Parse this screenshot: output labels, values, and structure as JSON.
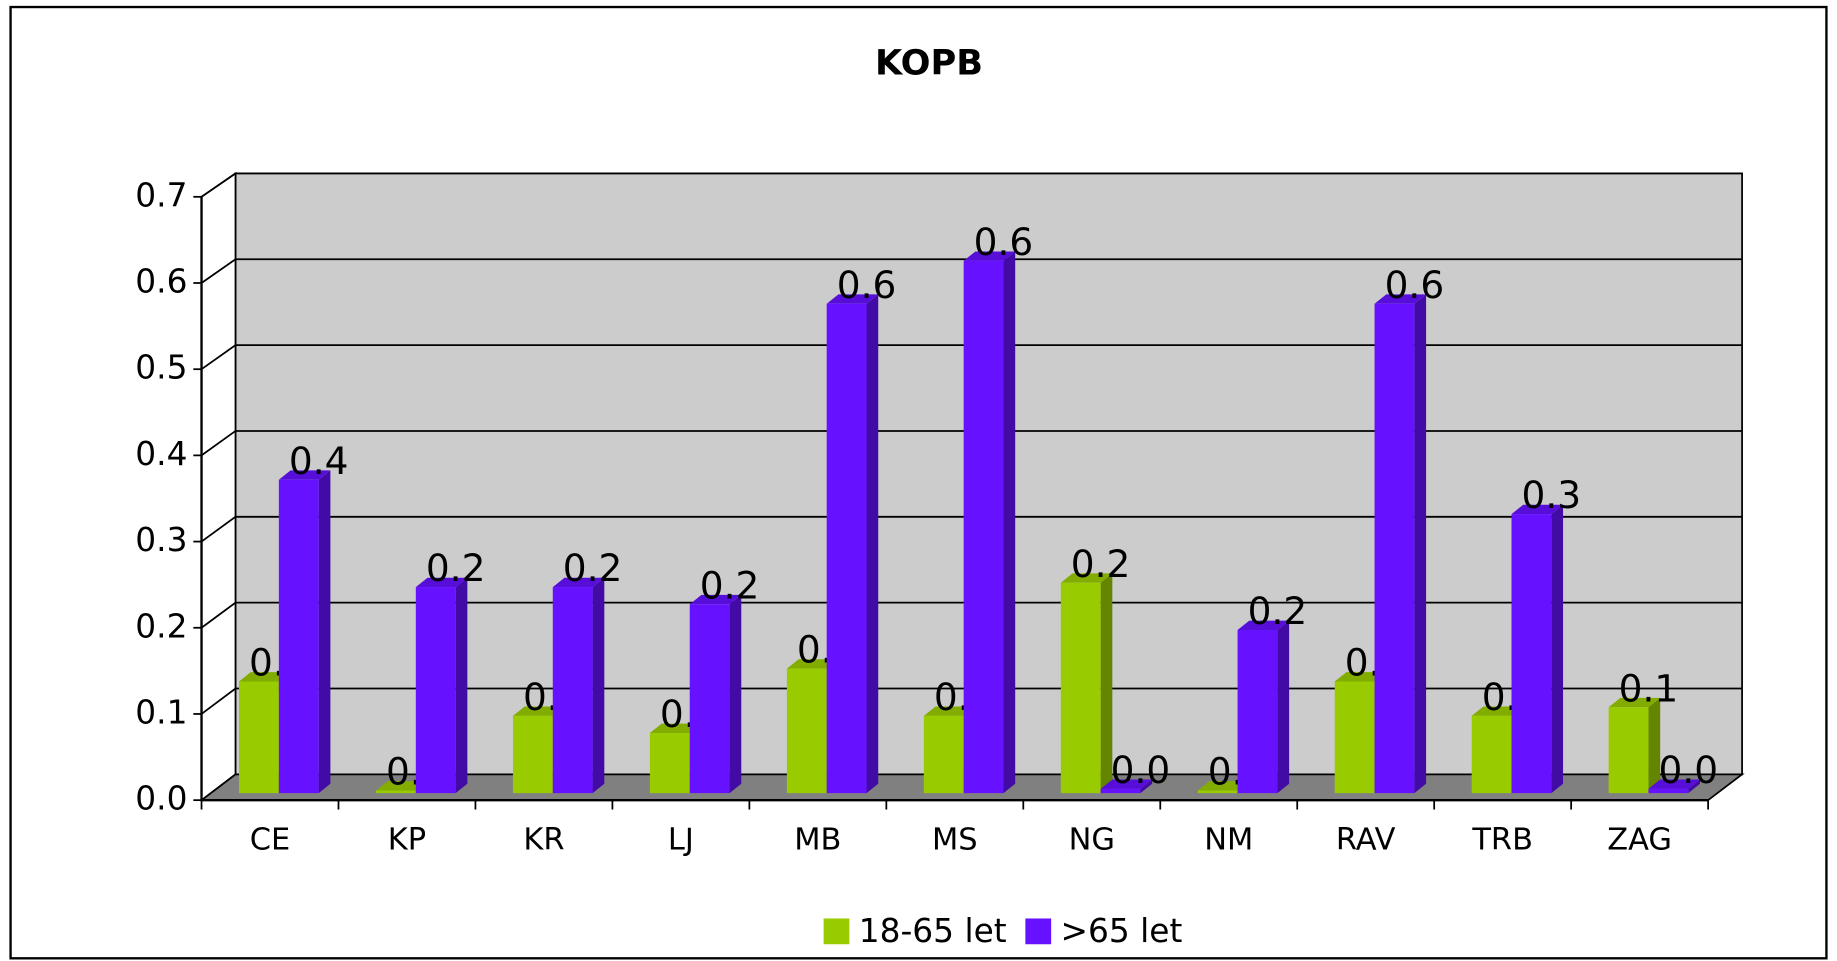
{
  "chart_data": {
    "type": "bar3d",
    "title": "KOPB",
    "categories": [
      "CE",
      "KP",
      "KR",
      "LJ",
      "MB",
      "MS",
      "NG",
      "NM",
      "RAV",
      "TRB",
      "ZAG"
    ],
    "series": [
      {
        "name": "18-65 let",
        "color": "#99cc00",
        "values": [
          0.13,
          0.003,
          0.09,
          0.07,
          0.145,
          0.09,
          0.245,
          0.003,
          0.13,
          0.09,
          0.1
        ],
        "value_labels": [
          "0.1",
          "0.0",
          "0.1",
          "0.1",
          "0.1",
          "0.1",
          "0.2",
          "0.0",
          "0.1",
          "0.1",
          "0.1"
        ]
      },
      {
        "name": ">65 let",
        "color": "#6611ff",
        "values": [
          0.365,
          0.24,
          0.24,
          0.22,
          0.57,
          0.62,
          0.005,
          0.19,
          0.57,
          0.325,
          0.005
        ],
        "value_labels": [
          "0.4",
          "0.2",
          "0.2",
          "0.2",
          "0.6",
          "0.6",
          "0.0",
          "0.2",
          "0.6",
          "0.3",
          "0.0"
        ]
      }
    ],
    "ylim": [
      0,
      0.7
    ],
    "yticks": [
      {
        "value": 0,
        "label": "0.0"
      },
      0.1,
      0.2,
      0.3,
      0.4,
      0.5,
      0.6,
      0.7
    ],
    "grid": true,
    "legend": "bottom"
  }
}
